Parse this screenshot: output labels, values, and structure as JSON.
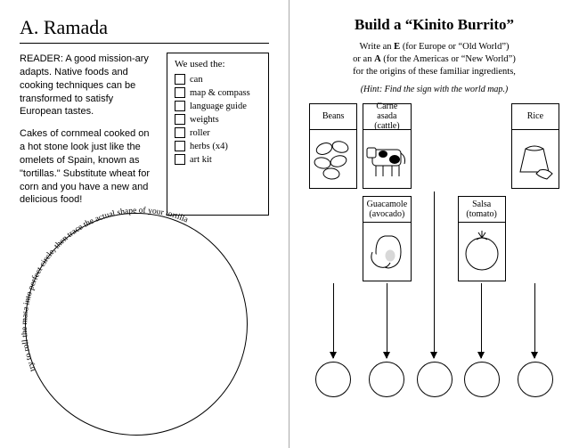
{
  "left": {
    "title": "A.  Ramada",
    "reader1": "READER: A good mission-ary adapts. Native foods and cooking techniques can be transformed to satisfy European tastes.",
    "reader2": "Cakes of cornmeal cooked on a hot stone look just like the omelets of Spain, known as \"tortillas.\" Substitute wheat for corn and you have a new and delicious food!",
    "checklist_title": "We used the:",
    "items": [
      "can",
      "map & compass",
      "language guide",
      "weights",
      "roller",
      "herbs (x4)",
      "art kit"
    ],
    "curved": "try to roll the masa into perfect circle, then trace the actual shape of your tortilla"
  },
  "right": {
    "title": "Build a “Kinito Burrito”",
    "sub1": "Write an E (for Europe or “Old World”)",
    "sub2": "or an A (for the Americas or “New World”)",
    "sub3": "for the origins of these familiar ingredients,",
    "hint": "(Hint: Find the sign with the world map.)",
    "ing": {
      "beans": "Beans",
      "carne": "Carne asada\n(cattle)",
      "rice": "Rice",
      "guac": "Guacamole\n(avocado)",
      "salsa": "Salsa\n(tomato)"
    }
  }
}
